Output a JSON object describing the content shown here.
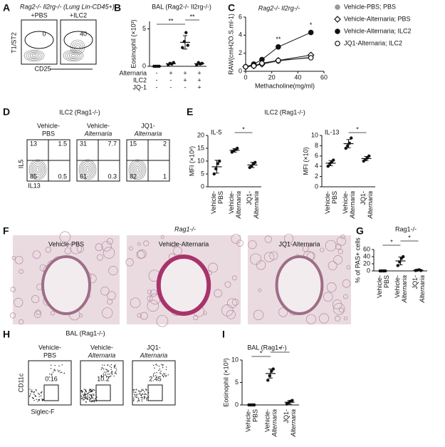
{
  "panels": {
    "A": {
      "letter": "A",
      "title": "Rag2-/- Il2rg-/- (Lung Lin-CD45+)",
      "plots": [
        {
          "label": "+PBS",
          "gate": "0"
        },
        {
          "label": "+ILC2",
          "gate": "40"
        }
      ],
      "y_label": "T1/ST2",
      "x_label": "CD25"
    },
    "D": {
      "letter": "D",
      "title": "ILC2 (Rag1-/-)",
      "plots": [
        {
          "label": [
            "Vehicle-",
            "PBS"
          ],
          "quadrants": [
            "13",
            "1.5",
            "85",
            "0.5"
          ]
        },
        {
          "label": [
            "Vehicle-",
            "Alternaria"
          ],
          "quadrants": [
            "31",
            "7.7",
            "61",
            "0.3"
          ]
        },
        {
          "label": [
            "JQ1-",
            "Alternaria"
          ],
          "quadrants": [
            "15",
            "2",
            "82",
            "1"
          ]
        }
      ],
      "y_label": "IL5",
      "x_label": "IL13"
    },
    "F": {
      "letter": "F",
      "title": "Rag1-/-",
      "images": [
        "Vehicle-PBS",
        "Vehicle-Alternaria",
        "JQ1-Alternaria"
      ]
    },
    "H": {
      "letter": "H",
      "title": "BAL (Rag1-/-)",
      "plots": [
        {
          "label": [
            "Vehicle-",
            "PBS"
          ],
          "gate": "0.16"
        },
        {
          "label": [
            "Vehicle-",
            "Alternaria"
          ],
          "gate": "10.2"
        },
        {
          "label": [
            "JQ1-",
            "Alternaria"
          ],
          "gate": "2.45"
        }
      ],
      "y_label": "CD11c",
      "x_label": "Siglec-F"
    }
  },
  "chart_data": [
    {
      "panel": "B",
      "type": "dot",
      "title": "BAL (Rag2-/- Il2rg-/-)",
      "y_label": "Eosinophil (×10³)",
      "ylim": [
        0,
        6
      ],
      "yticks": [
        0,
        5
      ],
      "groups": [
        {
          "points": [
            0,
            0,
            0,
            0
          ],
          "mean": 0,
          "sd": 0
        },
        {
          "points": [
            0.2,
            0.4,
            0.3,
            0.5
          ],
          "mean": 0.35,
          "sd": 0.1
        },
        {
          "points": [
            2.5,
            3.3,
            4.5,
            2.8
          ],
          "mean": 3.2,
          "sd": 0.9
        },
        {
          "points": [
            0.2,
            0.5,
            0.3,
            0.4
          ],
          "mean": 0.35,
          "sd": 0.1
        }
      ],
      "factors": [
        {
          "name": "Alternaria",
          "levels": [
            "-",
            "+",
            "+",
            "+"
          ]
        },
        {
          "name": "ILC2",
          "levels": [
            "-",
            "-",
            "+",
            "+"
          ]
        },
        {
          "name": "JQ-1",
          "levels": [
            "-",
            "-",
            "-",
            "+"
          ]
        }
      ],
      "annotations": [
        "**",
        "**"
      ]
    },
    {
      "panel": "C",
      "type": "line",
      "title": "Rag2-/- Il2rg-/-",
      "y_label": "RAW(cmH2O.S.ml-1)",
      "x_label": "Methacholine(mg/ml)",
      "x": [
        0,
        6.25,
        12.5,
        25,
        50
      ],
      "xlim": [
        0,
        60
      ],
      "xticks": [
        0,
        20,
        40,
        60
      ],
      "ylim": [
        0,
        6
      ],
      "yticks": [
        0,
        2,
        4,
        6
      ],
      "series": [
        {
          "name": "Vehicle-PBS; PBS",
          "color": "#999999",
          "marker": "circle",
          "filled": true,
          "values": [
            0.5,
            0.6,
            0.8,
            1.1,
            1.6
          ]
        },
        {
          "name": "Vehicle-Alternaria; PBS",
          "color": "#111111",
          "marker": "diamond",
          "filled": false,
          "values": [
            0.5,
            0.6,
            0.8,
            1.2,
            1.8
          ]
        },
        {
          "name": "Vehicle-Alternaria; ILC2",
          "color": "#111111",
          "marker": "circle",
          "filled": true,
          "values": [
            0.5,
            0.8,
            1.3,
            2.7,
            4.3
          ]
        },
        {
          "name": "JQ1-Alternaria; ILC2",
          "color": "#111111",
          "marker": "circle",
          "filled": false,
          "values": [
            0.5,
            0.6,
            0.9,
            1.2,
            1.5
          ]
        }
      ],
      "annotations": [
        {
          "text": "**",
          "x": 25
        },
        {
          "text": "*",
          "x": 50
        }
      ]
    },
    {
      "panel": "E",
      "type": "dot",
      "title": "ILC2 (Rag1-/-)",
      "subtitle": "IL-5",
      "y_label": "MFI (×10²)",
      "ylim": [
        0,
        20
      ],
      "yticks": [
        0,
        5,
        10,
        15,
        20
      ],
      "categories": [
        [
          "Vehicle-",
          "PBS"
        ],
        [
          "Vehicle-",
          "Alternaria"
        ],
        [
          "JQ1-",
          "Alternaria"
        ]
      ],
      "groups": [
        {
          "points": [
            5,
            7,
            9,
            10
          ],
          "mean": 7.8,
          "sd": 2.5
        },
        {
          "points": [
            13.5,
            14,
            14.5,
            15
          ],
          "mean": 14.2,
          "sd": 0.7
        },
        {
          "points": [
            7.5,
            8,
            9,
            9.5
          ],
          "mean": 8.5,
          "sd": 1
        }
      ],
      "annotations": [
        "*"
      ]
    },
    {
      "type": "dot",
      "subtitle": "IL-13",
      "y_label": "MFI (×10)",
      "ylim": [
        0,
        10
      ],
      "yticks": [
        0,
        2,
        4,
        6,
        8,
        10
      ],
      "categories": [
        [
          "Vehicle-",
          "PBS"
        ],
        [
          "Vehicle-",
          "Alternaria"
        ],
        [
          "JQ1-",
          "Alternaria"
        ]
      ],
      "groups": [
        {
          "points": [
            4,
            4.5,
            4.8,
            5.2
          ],
          "mean": 4.6,
          "sd": 0.5
        },
        {
          "points": [
            7.5,
            8,
            8.5,
            9.5
          ],
          "mean": 8.4,
          "sd": 0.8
        },
        {
          "points": [
            5,
            5.3,
            5.6,
            6
          ],
          "mean": 5.5,
          "sd": 0.4
        }
      ],
      "annotations": [
        "*"
      ]
    },
    {
      "panel": "G",
      "type": "dot",
      "title": "Rag1-/-",
      "y_label": "% of PAS+ cells",
      "ylim": [
        0,
        60
      ],
      "yticks": [
        0,
        20,
        40,
        60
      ],
      "categories": [
        [
          "Vehicle-",
          "PBS"
        ],
        [
          "Vehicle-",
          "Alternaria"
        ],
        [
          "JQ1-",
          "Alternaria"
        ]
      ],
      "groups": [
        {
          "points": [
            0,
            0,
            0,
            0
          ],
          "mean": 0,
          "sd": 0
        },
        {
          "points": [
            15,
            25,
            35,
            40
          ],
          "mean": 28,
          "sd": 11
        },
        {
          "points": [
            1,
            2,
            3,
            1
          ],
          "mean": 2,
          "sd": 1
        }
      ],
      "annotations": [
        "*",
        "*"
      ]
    },
    {
      "panel": "I",
      "type": "dot",
      "title": "BAL (Rag1-/-)",
      "y_label": "Eosinophil (×10³)",
      "ylim": [
        0,
        10
      ],
      "yticks": [
        0,
        5,
        10
      ],
      "categories": [
        [
          "Vehicle-",
          "PBS"
        ],
        [
          "Vehicle-",
          "Alternaria"
        ],
        [
          "JQ1-",
          "Alternaria"
        ]
      ],
      "groups": [
        {
          "points": [
            0,
            0,
            0,
            0
          ],
          "mean": 0,
          "sd": 0
        },
        {
          "points": [
            5.5,
            6.5,
            7.5,
            8
          ],
          "mean": 7,
          "sd": 1
        },
        {
          "points": [
            0.2,
            0.5,
            0.8,
            1
          ],
          "mean": 0.6,
          "sd": 0.4
        }
      ],
      "annotations": [
        "*",
        "*"
      ]
    }
  ]
}
